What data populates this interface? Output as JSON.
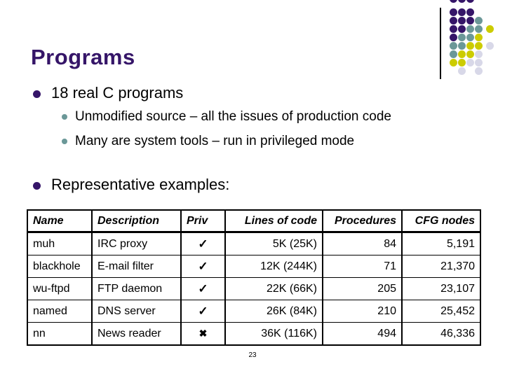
{
  "slide": {
    "title": "Programs",
    "page_number": "23",
    "bullets": [
      {
        "level": 1,
        "text": "18 real C programs"
      },
      {
        "level": 2,
        "text": "Unmodified source – all the issues of production code"
      },
      {
        "level": 2,
        "text": "Many are system tools – run in privileged mode"
      },
      {
        "level": 1,
        "text": "Representative examples:"
      }
    ]
  },
  "table": {
    "headers": [
      "Name",
      "Description",
      "Priv",
      "Lines of code",
      "Procedures",
      "CFG nodes"
    ],
    "glyphs": {
      "check": "✓",
      "cross": "✖"
    },
    "rows": [
      {
        "name": "muh",
        "description": "IRC proxy",
        "priv": true,
        "lines": "5K (25K)",
        "procedures": "84",
        "cfg_nodes": "5,191"
      },
      {
        "name": "blackhole",
        "description": "E-mail filter",
        "priv": true,
        "lines": "12K (244K)",
        "procedures": "71",
        "cfg_nodes": "21,370"
      },
      {
        "name": "wu-ftpd",
        "description": "FTP daemon",
        "priv": true,
        "lines": "22K (66K)",
        "procedures": "205",
        "cfg_nodes": "23,107"
      },
      {
        "name": "named",
        "description": "DNS server",
        "priv": true,
        "lines": "26K (84K)",
        "procedures": "210",
        "cfg_nodes": "25,452"
      },
      {
        "name": "nn",
        "description": "News reader",
        "priv": false,
        "lines": "36K (116K)",
        "procedures": "494",
        "cfg_nodes": "46,336"
      }
    ]
  },
  "colors": {
    "accent_purple": "#351568",
    "accent_teal": "#6B9898",
    "accent_yellow": "#CCCC00",
    "accent_lavender": "#D8D8E8",
    "text": "#000000",
    "background": "#FFFFFF"
  },
  "decoration": {
    "pattern": [
      "PPP..",
      "PPP..",
      "PPPT.",
      "PPTTY",
      "PTTY.",
      "TTYYG",
      "TYYG.",
      "YYGG.",
      ".G.G."
    ],
    "color_map": {
      "P": "accent_purple",
      "T": "accent_teal",
      "Y": "accent_yellow",
      "G": "accent_lavender"
    }
  }
}
